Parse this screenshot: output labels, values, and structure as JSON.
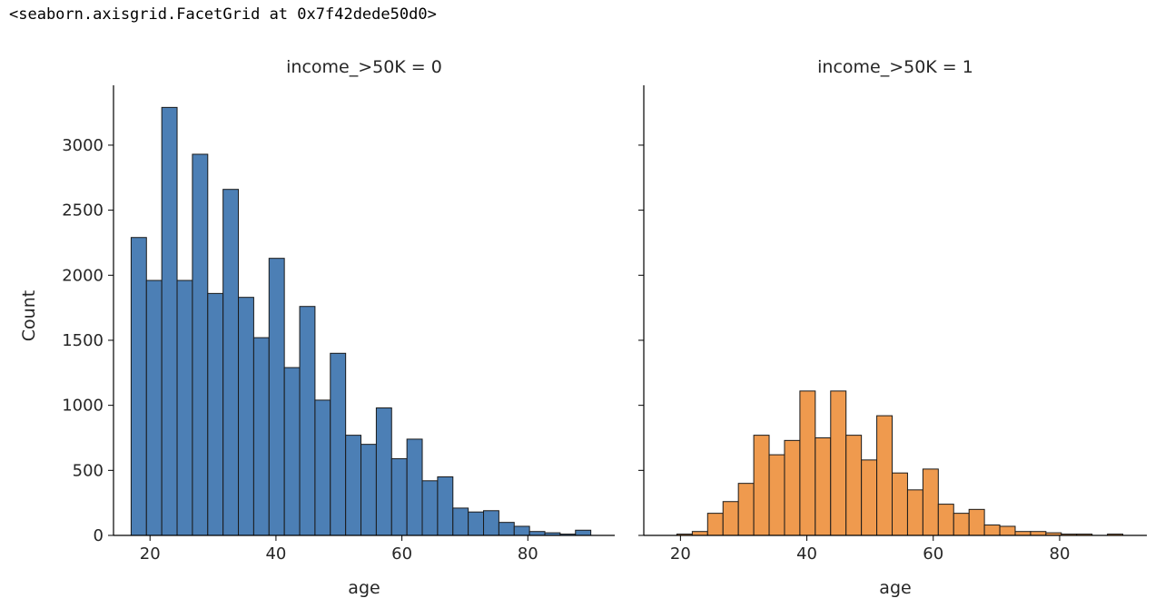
{
  "output_text": "<seaborn.axisgrid.FacetGrid at 0x7f42dede50d0>",
  "chart_data": [
    {
      "type": "bar",
      "title": "income_>50K = 0",
      "xlabel": "age",
      "ylabel": "Count",
      "color": "#4c7fb5",
      "xlim": [
        14.2,
        93.8
      ],
      "ylim": [
        0,
        3460
      ],
      "xticks": [
        20,
        40,
        60,
        80
      ],
      "yticks": [
        0,
        500,
        1000,
        1500,
        2000,
        2500,
        3000
      ],
      "bin_start": 17,
      "bin_width": 2.4333,
      "values": [
        2290,
        1960,
        3290,
        1960,
        2930,
        1860,
        2660,
        1830,
        1520,
        2130,
        1290,
        1760,
        1040,
        1400,
        770,
        700,
        980,
        590,
        740,
        420,
        450,
        210,
        180,
        190,
        100,
        70,
        30,
        20,
        10,
        40
      ]
    },
    {
      "type": "bar",
      "title": "income_>50K = 1",
      "xlabel": "age",
      "ylabel": "",
      "color": "#ef9a4e",
      "xlim": [
        14.2,
        93.8
      ],
      "ylim": [
        0,
        3460
      ],
      "xticks": [
        20,
        40,
        60,
        80
      ],
      "yticks": [
        0,
        500,
        1000,
        1500,
        2000,
        2500,
        3000
      ],
      "bin_start": 17,
      "bin_width": 2.4333,
      "values": [
        0,
        10,
        30,
        170,
        260,
        400,
        770,
        620,
        730,
        1110,
        750,
        1110,
        770,
        580,
        920,
        480,
        350,
        510,
        240,
        170,
        200,
        80,
        70,
        30,
        30,
        20,
        10,
        10,
        0,
        10
      ]
    }
  ]
}
